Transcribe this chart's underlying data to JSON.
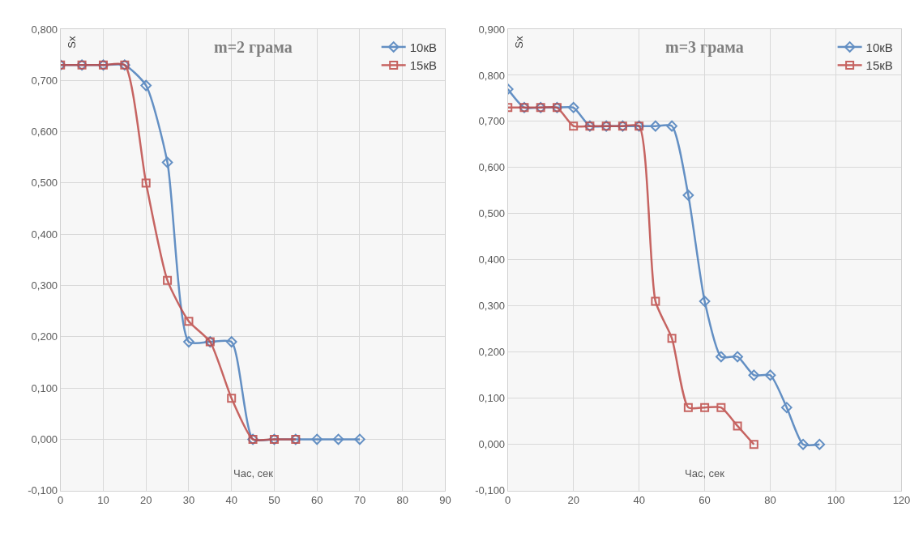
{
  "chart_data": [
    {
      "type": "line",
      "title": "m=2 грама",
      "xlabel": "Час, сек",
      "ylabel": "Sx",
      "x": [
        0,
        5,
        10,
        15,
        20,
        25,
        30,
        35,
        40,
        45,
        50,
        55,
        60,
        65,
        70
      ],
      "series": [
        {
          "name": "10кВ",
          "color": "#4a7ebb",
          "marker": "diamond",
          "values": [
            0.73,
            0.73,
            0.73,
            0.73,
            0.69,
            0.54,
            0.19,
            0.19,
            0.19,
            0,
            0,
            0,
            0,
            0,
            0
          ]
        },
        {
          "name": "15кВ",
          "color": "#be4b48",
          "marker": "square",
          "values": [
            0.73,
            0.73,
            0.73,
            0.73,
            0.5,
            0.31,
            0.23,
            0.19,
            0.08,
            0,
            0,
            0,
            null,
            null,
            null
          ]
        }
      ],
      "xlim": [
        0,
        90
      ],
      "xticks": [
        0,
        10,
        20,
        30,
        40,
        50,
        60,
        70,
        80,
        90
      ],
      "ylim": [
        -0.1,
        0.8
      ],
      "yticks": [
        {
          "value": -0.1,
          "label": "-0,100"
        },
        {
          "value": 0,
          "label": "0,000"
        },
        {
          "value": 0.1,
          "label": "0,100"
        },
        {
          "value": 0.2,
          "label": "0,200"
        },
        {
          "value": 0.3,
          "label": "0,300"
        },
        {
          "value": 0.4,
          "label": "0,400"
        },
        {
          "value": 0.5,
          "label": "0,500"
        },
        {
          "value": 0.6,
          "label": "0,600"
        },
        {
          "value": 0.7,
          "label": "0,700"
        },
        {
          "value": 0.8,
          "label": "0,800"
        }
      ],
      "grid": true,
      "legend": "top right"
    },
    {
      "type": "line",
      "title": "m=3 грама",
      "xlabel": "Час, сек",
      "ylabel": "Sx",
      "x": [
        0,
        5,
        10,
        15,
        20,
        25,
        30,
        35,
        40,
        45,
        50,
        55,
        60,
        65,
        70,
        75,
        80,
        85,
        90,
        95
      ],
      "series": [
        {
          "name": "10кВ",
          "color": "#4a7ebb",
          "marker": "diamond",
          "values": [
            0.77,
            0.73,
            0.73,
            0.73,
            0.73,
            0.69,
            0.69,
            0.69,
            0.69,
            0.69,
            0.69,
            0.54,
            0.31,
            0.19,
            0.19,
            0.15,
            0.15,
            0.08,
            0,
            0
          ]
        },
        {
          "name": "15кВ",
          "color": "#be4b48",
          "marker": "square",
          "values": [
            0.73,
            0.73,
            0.73,
            0.73,
            0.69,
            0.69,
            0.69,
            0.69,
            0.69,
            0.31,
            0.23,
            0.08,
            0.08,
            0.08,
            0.04,
            0,
            null,
            null,
            null,
            null
          ]
        }
      ],
      "xlim": [
        0,
        120
      ],
      "xticks": [
        0,
        20,
        40,
        60,
        80,
        100,
        120
      ],
      "ylim": [
        -0.1,
        0.9
      ],
      "yticks": [
        {
          "value": -0.1,
          "label": "-0,100"
        },
        {
          "value": 0,
          "label": "0,000"
        },
        {
          "value": 0.1,
          "label": "0,100"
        },
        {
          "value": 0.2,
          "label": "0,200"
        },
        {
          "value": 0.3,
          "label": "0,300"
        },
        {
          "value": 0.4,
          "label": "0,400"
        },
        {
          "value": 0.5,
          "label": "0,500"
        },
        {
          "value": 0.6,
          "label": "0,600"
        },
        {
          "value": 0.7,
          "label": "0,700"
        },
        {
          "value": 0.8,
          "label": "0,800"
        },
        {
          "value": 0.9,
          "label": "0,900"
        }
      ],
      "grid": true,
      "legend": "top right"
    }
  ]
}
